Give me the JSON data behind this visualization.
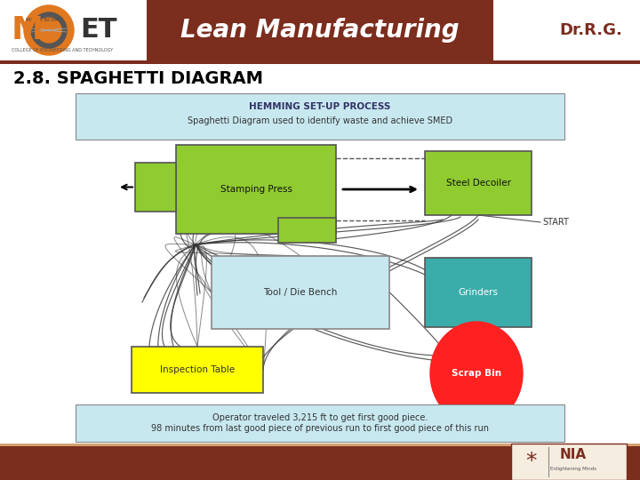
{
  "bg_color": "#ffffff",
  "header_bar_color": "#7B2D1E",
  "header_text": "Lean Manufacturing",
  "header_text_color": "#ffffff",
  "header_font_size": 20,
  "dr_text": "Dr.R.G.",
  "dr_text_color": "#7B2D1E",
  "title_text": "2.8. SPAGHETTI DIAGRAM",
  "title_color": "#000000",
  "title_font_size": 14,
  "top_box_text1": "HEMMING SET-UP PROCESS",
  "top_box_text2": "Spaghetti Diagram used to identify waste and achieve SMED",
  "top_box_bg": "#c8e8f0",
  "top_box_border": "#888888",
  "bottom_box_text": "Operator traveled 3,215 ft to get first good piece.\n98 minutes from last good piece of previous run to first good piece of this run",
  "bottom_box_bg": "#c8e8f0",
  "footer_bar_color": "#7B2D1E",
  "footer_line_color": "#d4a070",
  "stamping_press_color": "#90cc30",
  "stamping_press_label": "Stamping Press",
  "steel_decoiler_color": "#90cc30",
  "steel_decoiler_label": "Steel Decoiler",
  "tool_die_color": "#c8e8f0",
  "tool_die_label": "Tool / Die Bench",
  "grinders_color": "#3aadaa",
  "grinders_label": "Grinders",
  "inspection_color": "#ffff00",
  "inspection_label": "Inspection Table",
  "scrap_color": "#ff2020",
  "scrap_label": "Scrap Bin",
  "start_label": "START",
  "small_green_color": "#90cc30",
  "line_color": "#333333",
  "mcet_orange": "#e07820",
  "mcet_brown": "#7B2D1E"
}
